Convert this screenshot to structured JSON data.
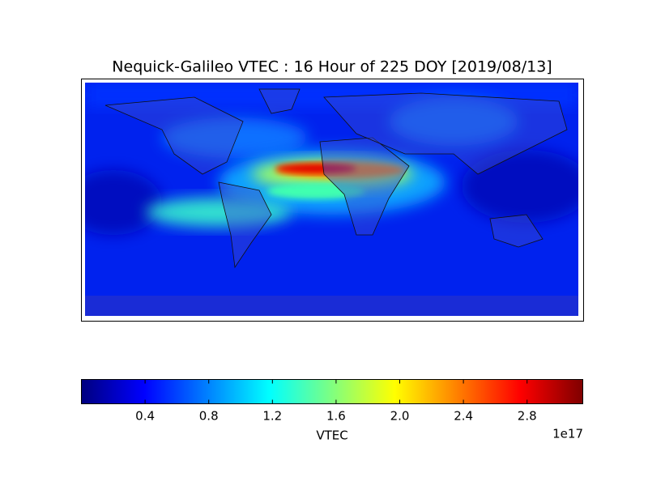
{
  "chart_data": {
    "type": "map",
    "title": "Nequick-Galileo VTEC : 16 Hour of 225 DOY [2019/08/13]",
    "colorbar": {
      "label": "VTEC",
      "offset_label": "1e17",
      "clim": [
        0,
        3.15
      ],
      "ticks": [
        0.4,
        0.8,
        1.2,
        1.6,
        {
          "value": 2,
          "label": "2.0"
        },
        2.4,
        2.8
      ]
    }
  }
}
